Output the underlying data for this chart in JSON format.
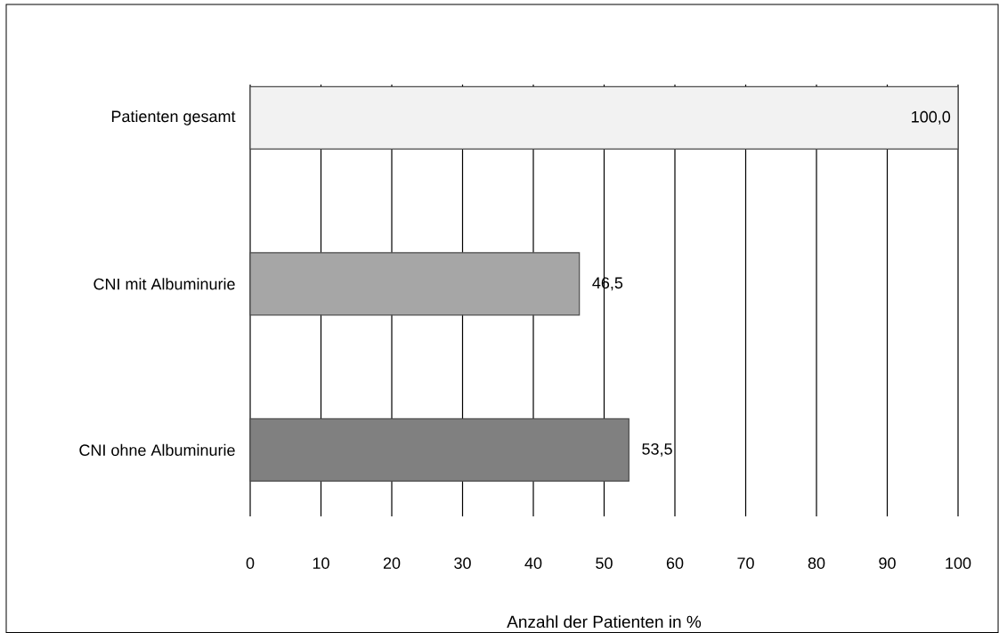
{
  "chart_data": {
    "type": "bar",
    "orientation": "horizontal",
    "xlabel": "Anzahl der Patienten in %",
    "categories": [
      "Patienten gesamt",
      "CNI mit Albuminurie",
      "CNI ohne Albuminurie"
    ],
    "values": [
      100.0,
      46.5,
      53.5
    ],
    "colors": [
      "#f2f2f2",
      "#a6a6a6",
      "#808080"
    ],
    "value_labels": [
      "100,0",
      "46,5",
      "53,5"
    ],
    "xlim": [
      0,
      100
    ],
    "xticks": [
      0,
      10,
      20,
      30,
      40,
      50,
      60,
      70,
      80,
      90,
      100
    ],
    "grid": "x"
  }
}
